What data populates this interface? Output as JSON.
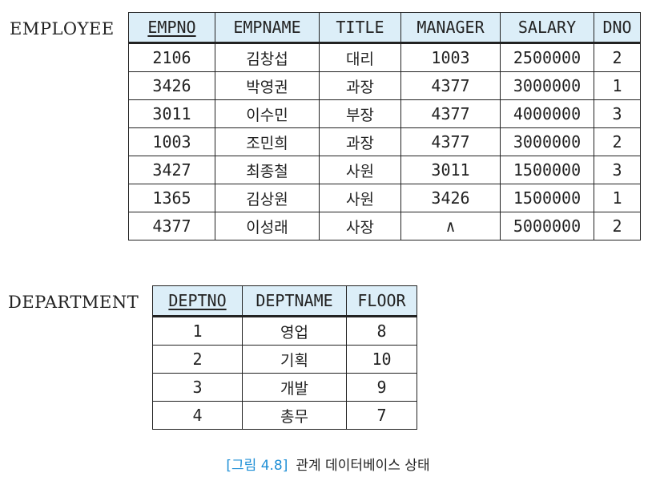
{
  "employee": {
    "name": "EMPLOYEE",
    "columns": [
      "EMPNO",
      "EMPNAME",
      "TITLE",
      "MANAGER",
      "SALARY",
      "DNO"
    ],
    "rows": [
      [
        "2106",
        "김창섭",
        "대리",
        "1003",
        "2500000",
        "2"
      ],
      [
        "3426",
        "박영권",
        "과장",
        "4377",
        "3000000",
        "1"
      ],
      [
        "3011",
        "이수민",
        "부장",
        "4377",
        "4000000",
        "3"
      ],
      [
        "1003",
        "조민희",
        "과장",
        "4377",
        "3000000",
        "2"
      ],
      [
        "3427",
        "최종철",
        "사원",
        "3011",
        "1500000",
        "3"
      ],
      [
        "1365",
        "김상원",
        "사원",
        "3426",
        "1500000",
        "1"
      ],
      [
        "4377",
        "이성래",
        "사장",
        "∧",
        "5000000",
        "2"
      ]
    ]
  },
  "department": {
    "name": "DEPARTMENT",
    "columns": [
      "DEPTNO",
      "DEPTNAME",
      "FLOOR"
    ],
    "rows": [
      [
        "1",
        "영업",
        "8"
      ],
      [
        "2",
        "기획",
        "10"
      ],
      [
        "3",
        "개발",
        "9"
      ],
      [
        "4",
        "총무",
        "7"
      ]
    ]
  },
  "caption": {
    "figure_label": "[그림 4.8]",
    "text": "관계 데이터베이스 상태"
  }
}
